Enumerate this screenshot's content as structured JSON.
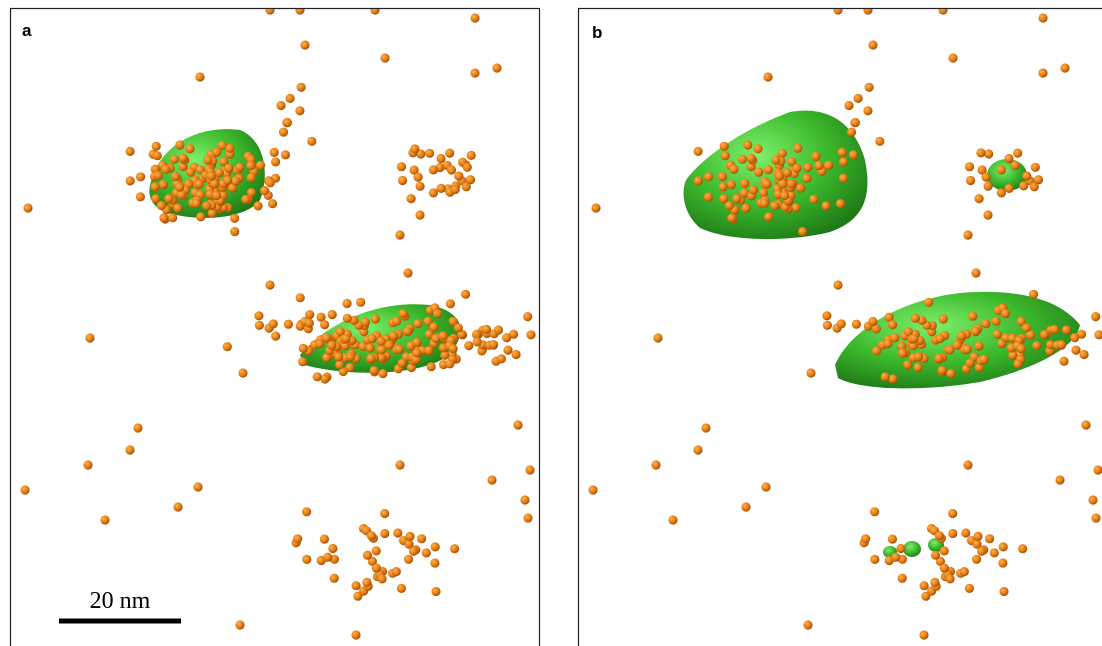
{
  "panels": [
    {
      "label": "a"
    },
    {
      "label": "b"
    }
  ],
  "scale_bar": {
    "label": "20 nm"
  }
}
